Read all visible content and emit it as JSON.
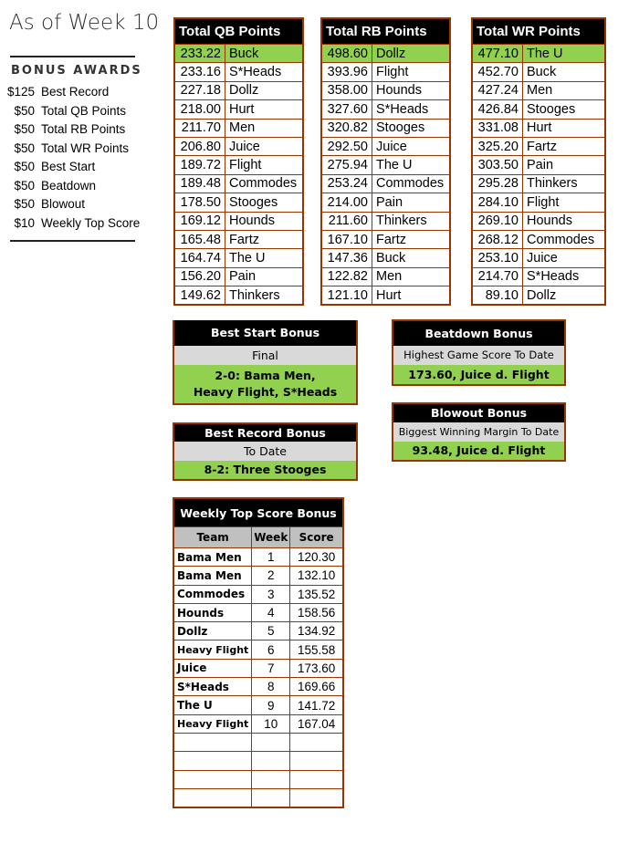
{
  "title": "As of Week 10",
  "bonus_awards": {
    "heading": "BONUS AWARDS",
    "items": [
      {
        "amount": "$125",
        "label": "Best Record"
      },
      {
        "amount": "$50",
        "label": "Total QB Points"
      },
      {
        "amount": "$50",
        "label": "Total RB Points"
      },
      {
        "amount": "$50",
        "label": "Total WR Points"
      },
      {
        "amount": "$50",
        "label": "Best Start"
      },
      {
        "amount": "$50",
        "label": "Beatdown"
      },
      {
        "amount": "$50",
        "label": "Blowout"
      },
      {
        "amount": "$10",
        "label": "Weekly Top Score"
      }
    ]
  },
  "qb": {
    "title": "Total QB Points",
    "rows": [
      [
        "233.22",
        "Buck"
      ],
      [
        "233.16",
        "S*Heads"
      ],
      [
        "227.18",
        "Dollz"
      ],
      [
        "218.00",
        "Hurt"
      ],
      [
        "211.70",
        "Men"
      ],
      [
        "206.80",
        "Juice"
      ],
      [
        "189.72",
        "Flight"
      ],
      [
        "189.48",
        "Commodes"
      ],
      [
        "178.50",
        "Stooges"
      ],
      [
        "169.12",
        "Hounds"
      ],
      [
        "165.48",
        "Fartz"
      ],
      [
        "164.74",
        "The U"
      ],
      [
        "156.20",
        "Pain"
      ],
      [
        "149.62",
        "Thinkers"
      ]
    ]
  },
  "rb": {
    "title": "Total RB Points",
    "rows": [
      [
        "498.60",
        "Dollz"
      ],
      [
        "393.96",
        "Flight"
      ],
      [
        "358.00",
        "Hounds"
      ],
      [
        "327.60",
        "S*Heads"
      ],
      [
        "320.82",
        "Stooges"
      ],
      [
        "292.50",
        "Juice"
      ],
      [
        "275.94",
        "The U"
      ],
      [
        "253.24",
        "Commodes"
      ],
      [
        "214.00",
        "Pain"
      ],
      [
        "211.60",
        "Thinkers"
      ],
      [
        "167.10",
        "Fartz"
      ],
      [
        "147.36",
        "Buck"
      ],
      [
        "122.82",
        "Men"
      ],
      [
        "121.10",
        "Hurt"
      ]
    ]
  },
  "wr": {
    "title": "Total WR Points",
    "rows": [
      [
        "477.10",
        "The U"
      ],
      [
        "452.70",
        "Buck"
      ],
      [
        "427.24",
        "Men"
      ],
      [
        "426.84",
        "Stooges"
      ],
      [
        "331.08",
        "Hurt"
      ],
      [
        "325.20",
        "Fartz"
      ],
      [
        "303.50",
        "Pain"
      ],
      [
        "295.28",
        "Thinkers"
      ],
      [
        "284.10",
        "Flight"
      ],
      [
        "269.10",
        "Hounds"
      ],
      [
        "268.12",
        "Commodes"
      ],
      [
        "253.10",
        "Juice"
      ],
      [
        "214.70",
        "S*Heads"
      ],
      [
        "89.10",
        "Dollz"
      ]
    ]
  },
  "best_start": {
    "title": "Best Start Bonus",
    "sub": "Final",
    "line1": "2-0: Bama Men,",
    "line2": "Heavy Flight, S*Heads"
  },
  "best_record": {
    "title": "Best Record Bonus",
    "sub": "To Date",
    "value": "8-2: Three Stooges"
  },
  "beatdown": {
    "title": "Beatdown Bonus",
    "sub": "Highest Game Score To Date",
    "value": "173.60, Juice d. Flight"
  },
  "blowout": {
    "title": "Blowout Bonus",
    "sub": "Biggest Winning Margin To Date",
    "value": "93.48, Juice d. Flight"
  },
  "weekly": {
    "title": "Weekly Top Score Bonus",
    "headers": [
      "Team",
      "Week",
      "Score"
    ],
    "rows": [
      [
        "Bama Men",
        "1",
        "120.30"
      ],
      [
        "Bama Men",
        "2",
        "132.10"
      ],
      [
        "Commodes",
        "3",
        "135.52"
      ],
      [
        "Hounds",
        "4",
        "158.56"
      ],
      [
        "Dollz",
        "5",
        "134.92"
      ],
      [
        "Heavy Flight",
        "6",
        "155.58"
      ],
      [
        "Juice",
        "7",
        "173.60"
      ],
      [
        "S*Heads",
        "8",
        "169.66"
      ],
      [
        "The U",
        "9",
        "141.72"
      ],
      [
        "Heavy Flight",
        "10",
        "167.04"
      ]
    ],
    "empty_rows": 4
  },
  "colors": {
    "border": "#993300",
    "leader": "#92d050",
    "header": "#000000",
    "sub": "#d9d9d9"
  }
}
